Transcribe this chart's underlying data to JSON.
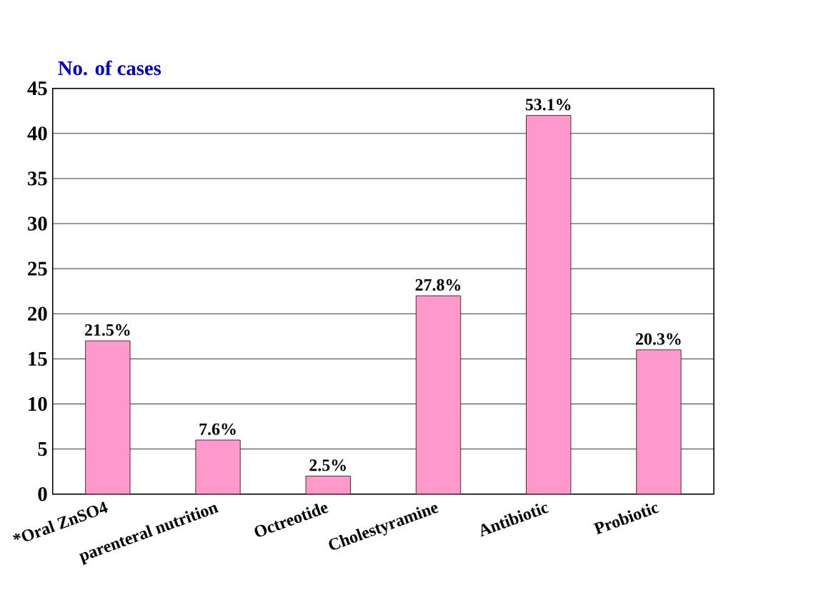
{
  "chart_data": {
    "type": "bar",
    "ylabel": "No. of cases",
    "categories": [
      "*Oral ZnSO4",
      "parenteral nutrition",
      "Octreotide",
      "Cholestyramine",
      "Antibiotic",
      "Probiotic"
    ],
    "values": [
      17,
      6,
      2,
      22,
      42,
      16
    ],
    "annotations": [
      {
        "text": "21.5%",
        "x": "*Oral ZnSO4",
        "y": 17
      },
      {
        "text": "7.6%",
        "x": "parenteral nutrition",
        "y": 6
      },
      {
        "text": "2.5%",
        "x": "Octreotide",
        "y": 2
      },
      {
        "text": "27.8%",
        "x": "Cholestyramine",
        "y": 22
      },
      {
        "text": "53.1%",
        "x": "Antibiotic",
        "y": 42
      },
      {
        "text": "20.3%",
        "x": "Probiotic",
        "y": 16
      }
    ],
    "color": "#ff99cc",
    "ylim": [
      0,
      45
    ],
    "yticks": [
      0,
      5,
      10,
      15,
      20,
      25,
      30,
      35,
      40,
      45
    ],
    "grid": "y"
  }
}
